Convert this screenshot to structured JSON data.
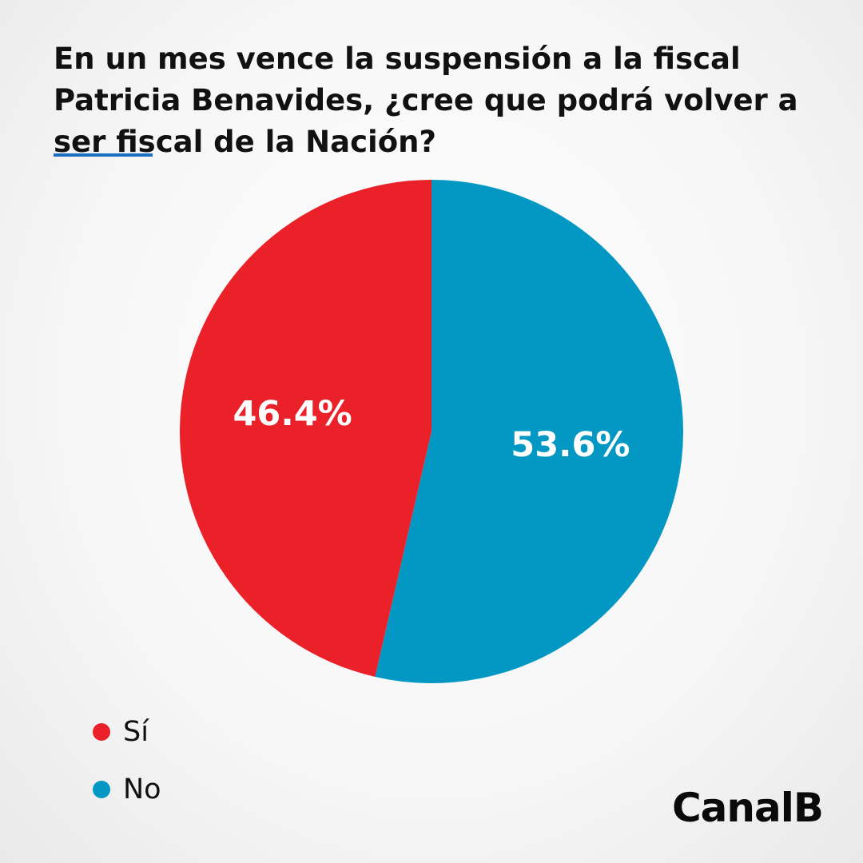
{
  "chart_data": {
    "type": "pie",
    "title": "En un mes vence la suspensión a la fiscal Patricia Benavides, ¿cree que podrá volver a ser fiscal de la Nación?",
    "slices": [
      {
        "name": "Sí",
        "value": 46.4,
        "label": "46.4%",
        "color": "#ea2128"
      },
      {
        "name": "No",
        "value": 53.6,
        "label": "53.6%",
        "color": "#0398c3"
      }
    ],
    "start": "top",
    "direction": "clockwise",
    "first_slice": "No",
    "legend_position": "bottom-left"
  },
  "theme": {
    "accent": "#1a6fc2",
    "text": "#111111",
    "label_text": "#ffffff"
  },
  "brand": {
    "name": "CanalB"
  }
}
